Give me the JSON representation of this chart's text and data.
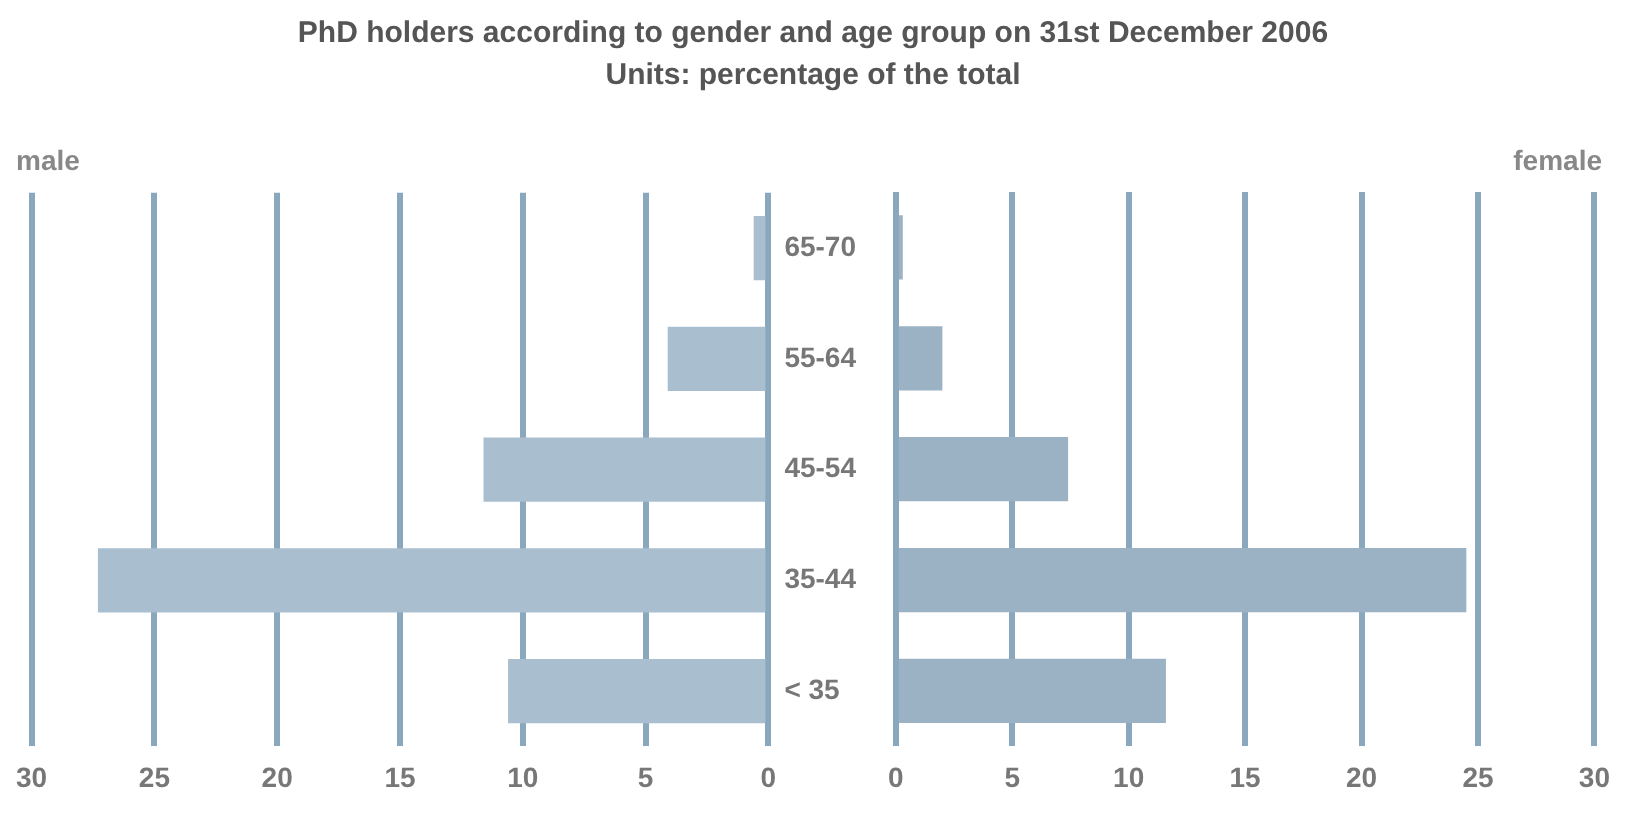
{
  "chart_data": [
    {
      "type": "bar",
      "orientation": "horizontal",
      "title": "PhD holders according to gender and age group on 31st December 2006",
      "subtitle": "Units: percentage of the total",
      "categories": [
        "65-70",
        "55-64",
        "45-54",
        "35-44",
        "< 35"
      ],
      "series": [
        {
          "name": "male",
          "color": "#a9bfcf",
          "values": [
            0.6,
            4.1,
            11.6,
            27.3,
            10.6
          ]
        }
      ],
      "xlim": [
        30,
        0
      ],
      "xticks": [
        30,
        25,
        20,
        15,
        10,
        5,
        0
      ],
      "grid": "x",
      "legend": false
    },
    {
      "type": "bar",
      "orientation": "horizontal",
      "categories": [
        "65-70",
        "55-64",
        "45-54",
        "35-44",
        "< 35"
      ],
      "series": [
        {
          "name": "female",
          "color": "#9bb2c5",
          "values": [
            0.3,
            2.0,
            7.4,
            24.5,
            11.6
          ]
        }
      ],
      "xlim": [
        0,
        30
      ],
      "xticks": [
        0,
        5,
        10,
        15,
        20,
        25,
        30
      ],
      "grid": "x",
      "legend": false,
      "tick_labels": "x"
    }
  ]
}
